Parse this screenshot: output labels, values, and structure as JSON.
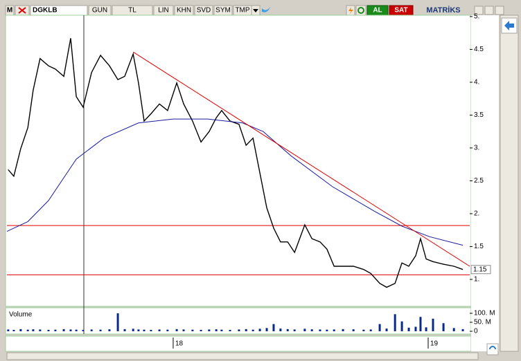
{
  "toolbar": {
    "symbol_box": "M",
    "symbol": "DGKLB",
    "buttons": [
      "GUN",
      "TL",
      "LIN",
      "KHN",
      "SVD",
      "SYM",
      "TMP"
    ],
    "buy": "AL",
    "sell": "SAT",
    "brand": "MATRİKS"
  },
  "chart_data": [
    {
      "type": "line",
      "xlim": [
        2017.348,
        2019.163
      ],
      "xticks": [
        {
          "value": 2018,
          "label": "18"
        },
        {
          "value": 2019,
          "label": "19"
        }
      ],
      "ylim": [
        0.6,
        5.02
      ],
      "yticks": [
        {
          "value": 1,
          "label": "1."
        },
        1.5,
        {
          "value": 2,
          "label": "2."
        },
        2.5,
        {
          "value": 3,
          "label": "3."
        },
        3.5,
        {
          "value": 4,
          "label": "4."
        },
        4.5,
        {
          "value": 5,
          "label": "5."
        }
      ],
      "last_value": 1.15,
      "hlines": [
        1.82,
        1.07
      ],
      "hline_color": "#e00000",
      "series": [
        {
          "color": "#000000",
          "x": [
            2017.353,
            2017.375,
            2017.402,
            2017.43,
            2017.451,
            2017.478,
            2017.511,
            2017.538,
            2017.571,
            2017.598,
            2017.62,
            2017.647,
            2017.68,
            2017.715,
            2017.75,
            2017.783,
            2017.81,
            2017.843,
            2017.864,
            2017.886,
            2017.913,
            2017.946,
            2017.978,
            2018.014,
            2018.041,
            2018.076,
            2018.109,
            2018.141,
            2018.169,
            2018.19,
            2018.223,
            2018.258,
            2018.286,
            2018.313,
            2018.34,
            2018.367,
            2018.394,
            2018.421,
            2018.449,
            2018.476,
            2018.516,
            2018.544,
            2018.576,
            2018.603,
            2018.631,
            2018.666,
            2018.707,
            2018.747,
            2018.775,
            2018.81,
            2018.837,
            2018.87,
            2018.897,
            2018.924,
            2018.951,
            2018.97,
            2018.992,
            2019.019,
            2019.06,
            2019.101,
            2019.136
          ],
          "values": [
            2.67,
            2.57,
            2.99,
            3.31,
            3.88,
            4.36,
            4.25,
            4.2,
            4.09,
            4.67,
            3.78,
            3.62,
            4.15,
            4.41,
            4.25,
            4.04,
            4.09,
            4.43,
            3.99,
            3.41,
            3.52,
            3.67,
            3.57,
            3.99,
            3.67,
            3.41,
            3.09,
            3.25,
            3.46,
            3.57,
            3.41,
            3.36,
            3.04,
            3.15,
            2.62,
            2.09,
            1.78,
            1.57,
            1.57,
            1.41,
            1.83,
            1.62,
            1.57,
            1.46,
            1.2,
            1.2,
            1.2,
            1.15,
            1.09,
            0.94,
            0.88,
            0.94,
            1.25,
            1.2,
            1.36,
            1.62,
            1.31,
            1.27,
            1.23,
            1.2,
            1.15
          ]
        },
        {
          "color": "#1a1aa0",
          "x": [
            2017.348,
            2017.43,
            2017.511,
            2017.62,
            2017.728,
            2017.864,
            2018.0,
            2018.136,
            2018.272,
            2018.353,
            2018.462,
            2018.625,
            2018.788,
            2018.897,
            2019.005,
            2019.136
          ],
          "values": [
            1.73,
            1.88,
            2.2,
            2.83,
            3.15,
            3.38,
            3.44,
            3.44,
            3.38,
            3.25,
            2.88,
            2.41,
            2.04,
            1.81,
            1.65,
            1.52
          ]
        },
        {
          "color": "#e00000",
          "x": [
            2017.843,
            2019.163
          ],
          "values": [
            4.46,
            1.2
          ]
        }
      ]
    },
    {
      "type": "bar",
      "title": "Volume",
      "xlim": [
        2017.348,
        2019.163
      ],
      "ylim": [
        0,
        127
      ],
      "yticks": [
        0,
        {
          "value": 50,
          "label": "50. M"
        },
        {
          "value": 100,
          "label": "100. M"
        }
      ],
      "color": "#0a2a8a",
      "x": [
        2017.353,
        2017.375,
        2017.402,
        2017.43,
        2017.451,
        2017.478,
        2017.511,
        2017.538,
        2017.571,
        2017.598,
        2017.62,
        2017.647,
        2017.68,
        2017.715,
        2017.75,
        2017.783,
        2017.81,
        2017.843,
        2017.864,
        2017.886,
        2017.913,
        2017.946,
        2017.978,
        2018.014,
        2018.041,
        2018.076,
        2018.109,
        2018.141,
        2018.169,
        2018.19,
        2018.223,
        2018.258,
        2018.286,
        2018.313,
        2018.34,
        2018.367,
        2018.394,
        2018.421,
        2018.449,
        2018.476,
        2018.516,
        2018.544,
        2018.576,
        2018.603,
        2018.631,
        2018.666,
        2018.707,
        2018.747,
        2018.775,
        2018.81,
        2018.837,
        2018.87,
        2018.897,
        2018.924,
        2018.951,
        2018.97,
        2018.992,
        2019.019,
        2019.06,
        2019.101,
        2019.136
      ],
      "values": [
        10,
        8,
        12,
        9,
        11,
        10,
        8,
        9,
        12,
        10,
        9,
        8,
        10,
        9,
        11,
        100,
        12,
        14,
        10,
        9,
        8,
        10,
        9,
        12,
        10,
        9,
        8,
        10,
        11,
        9,
        8,
        10,
        12,
        9,
        14,
        18,
        40,
        15,
        12,
        10,
        14,
        11,
        10,
        9,
        10,
        12,
        11,
        9,
        10,
        40,
        15,
        95,
        55,
        20,
        25,
        80,
        22,
        70,
        45,
        18,
        12
      ]
    }
  ]
}
